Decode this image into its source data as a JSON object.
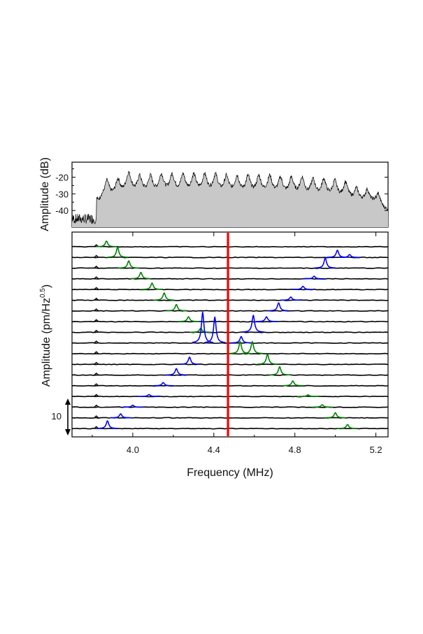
{
  "chart_data": [
    {
      "type": "area",
      "panel": "top",
      "ylabel": "Amplitude (dB)",
      "xlim": [
        3.7,
        5.26
      ],
      "ylim": [
        -50,
        -11
      ],
      "yticks": [
        -20,
        -30,
        -40
      ],
      "fill_color": "#c8c8c8",
      "line_color": "#000000",
      "noise_floor_db": -45,
      "comb_start_mhz": 3.82,
      "comb_spacing_mhz": 0.0535,
      "peaks": [
        {
          "x": 3.82,
          "y": -37
        },
        {
          "x": 3.873,
          "y": -22
        },
        {
          "x": 3.927,
          "y": -21
        },
        {
          "x": 3.98,
          "y": -17
        },
        {
          "x": 4.034,
          "y": -19
        },
        {
          "x": 4.087,
          "y": -19
        },
        {
          "x": 4.141,
          "y": -18
        },
        {
          "x": 4.194,
          "y": -18
        },
        {
          "x": 4.248,
          "y": -18
        },
        {
          "x": 4.301,
          "y": -18
        },
        {
          "x": 4.355,
          "y": -18
        },
        {
          "x": 4.408,
          "y": -18
        },
        {
          "x": 4.462,
          "y": -19
        },
        {
          "x": 4.515,
          "y": -19
        },
        {
          "x": 4.569,
          "y": -19
        },
        {
          "x": 4.622,
          "y": -19
        },
        {
          "x": 4.676,
          "y": -19
        },
        {
          "x": 4.729,
          "y": -20
        },
        {
          "x": 4.783,
          "y": -20
        },
        {
          "x": 4.836,
          "y": -20
        },
        {
          "x": 4.89,
          "y": -21
        },
        {
          "x": 4.943,
          "y": -21
        },
        {
          "x": 4.997,
          "y": -22
        },
        {
          "x": 5.05,
          "y": -23
        },
        {
          "x": 5.104,
          "y": -27
        },
        {
          "x": 5.157,
          "y": -28
        },
        {
          "x": 5.211,
          "y": -30
        }
      ]
    },
    {
      "type": "line",
      "panel": "bottom",
      "title": "",
      "xlabel": "Frequency (MHz)",
      "ylabel": "Amplitude (pm/Hz",
      "ylabel_sup": "0.5",
      "ylabel_end": ")",
      "xlim": [
        3.7,
        5.26
      ],
      "xticks": [
        4.0,
        4.4,
        4.8,
        5.2
      ],
      "xtick_labels": [
        "4.0",
        "4.4",
        "4.8",
        "5.2"
      ],
      "scale_bar_label": "10",
      "scale_bar_value": 10,
      "marker_line": {
        "x": 4.47,
        "color": "#ff0000"
      },
      "reference_peak": {
        "x": 3.82,
        "height": 1.2,
        "color": "#000000"
      },
      "trace_color": "#000000",
      "series": [
        {
          "name": "trace-1",
          "peaks": [
            {
              "x": 3.87,
              "height": 3.5,
              "color": "#008000"
            }
          ]
        },
        {
          "name": "trace-2",
          "peaks": [
            {
              "x": 3.925,
              "height": 6.2,
              "color": "#008000"
            },
            {
              "x": 5.01,
              "height": 4.5,
              "color": "#0000ff"
            },
            {
              "x": 5.07,
              "height": 1.8,
              "color": "#0000ff"
            }
          ]
        },
        {
          "name": "trace-3",
          "peaks": [
            {
              "x": 3.98,
              "height": 4.5,
              "color": "#008000"
            },
            {
              "x": 4.95,
              "height": 6.4,
              "color": "#0000ff"
            }
          ]
        },
        {
          "name": "trace-4",
          "peaks": [
            {
              "x": 4.04,
              "height": 4.0,
              "color": "#008000"
            },
            {
              "x": 4.895,
              "height": 1.6,
              "color": "#0000ff"
            }
          ]
        },
        {
          "name": "trace-5",
          "peaks": [
            {
              "x": 4.095,
              "height": 4.0,
              "color": "#008000"
            },
            {
              "x": 4.84,
              "height": 2.0,
              "color": "#0000ff"
            }
          ]
        },
        {
          "name": "trace-6",
          "peaks": [
            {
              "x": 4.155,
              "height": 4.5,
              "color": "#008000"
            },
            {
              "x": 4.78,
              "height": 2.0,
              "color": "#0000ff"
            }
          ]
        },
        {
          "name": "trace-7",
          "peaks": [
            {
              "x": 4.215,
              "height": 4.0,
              "color": "#008000"
            },
            {
              "x": 4.72,
              "height": 5.0,
              "color": "#0000ff"
            }
          ]
        },
        {
          "name": "trace-8",
          "peaks": [
            {
              "x": 4.275,
              "height": 3.0,
              "color": "#008000"
            },
            {
              "x": 4.66,
              "height": 3.0,
              "color": "#0000ff"
            }
          ]
        },
        {
          "name": "trace-9",
          "peaks": [
            {
              "x": 4.335,
              "height": 2.5,
              "color": "#008000"
            },
            {
              "x": 4.595,
              "height": 10.5,
              "color": "#0000ff"
            }
          ]
        },
        {
          "name": "trace-10",
          "peaks": [
            {
              "x": 4.345,
              "height": 19.0,
              "color": "#0000ff"
            },
            {
              "x": 4.405,
              "height": 16.0,
              "color": "#0000ff"
            },
            {
              "x": 4.535,
              "height": 4.0,
              "color": "#0000ff"
            }
          ]
        },
        {
          "name": "trace-11",
          "peaks": [
            {
              "x": 4.53,
              "height": 7.5,
              "color": "#008000"
            },
            {
              "x": 4.59,
              "height": 7.5,
              "color": "#008000"
            }
          ]
        },
        {
          "name": "trace-12",
          "peaks": [
            {
              "x": 4.28,
              "height": 4.5,
              "color": "#0000ff"
            },
            {
              "x": 4.665,
              "height": 6.2,
              "color": "#008000"
            }
          ]
        },
        {
          "name": "trace-13",
          "peaks": [
            {
              "x": 4.215,
              "height": 4.0,
              "color": "#0000ff"
            },
            {
              "x": 4.725,
              "height": 5.2,
              "color": "#008000"
            }
          ]
        },
        {
          "name": "trace-14",
          "peaks": [
            {
              "x": 4.15,
              "height": 2.0,
              "color": "#0000ff"
            },
            {
              "x": 4.79,
              "height": 3.0,
              "color": "#008000"
            }
          ]
        },
        {
          "name": "trace-15",
          "peaks": [
            {
              "x": 4.08,
              "height": 1.2,
              "color": "#0000ff"
            },
            {
              "x": 4.865,
              "height": 1.0,
              "color": "#008000"
            }
          ]
        },
        {
          "name": "trace-16",
          "peaks": [
            {
              "x": 4.0,
              "height": 1.2,
              "color": "#0000ff"
            },
            {
              "x": 4.935,
              "height": 1.5,
              "color": "#008000"
            }
          ]
        },
        {
          "name": "trace-17",
          "peaks": [
            {
              "x": 3.94,
              "height": 2.5,
              "color": "#0000ff"
            },
            {
              "x": 5.0,
              "height": 3.2,
              "color": "#008000"
            }
          ]
        },
        {
          "name": "trace-18",
          "peaks": [
            {
              "x": 3.875,
              "height": 4.8,
              "color": "#0000ff"
            },
            {
              "x": 5.06,
              "height": 2.5,
              "color": "#008000"
            }
          ]
        }
      ]
    }
  ]
}
